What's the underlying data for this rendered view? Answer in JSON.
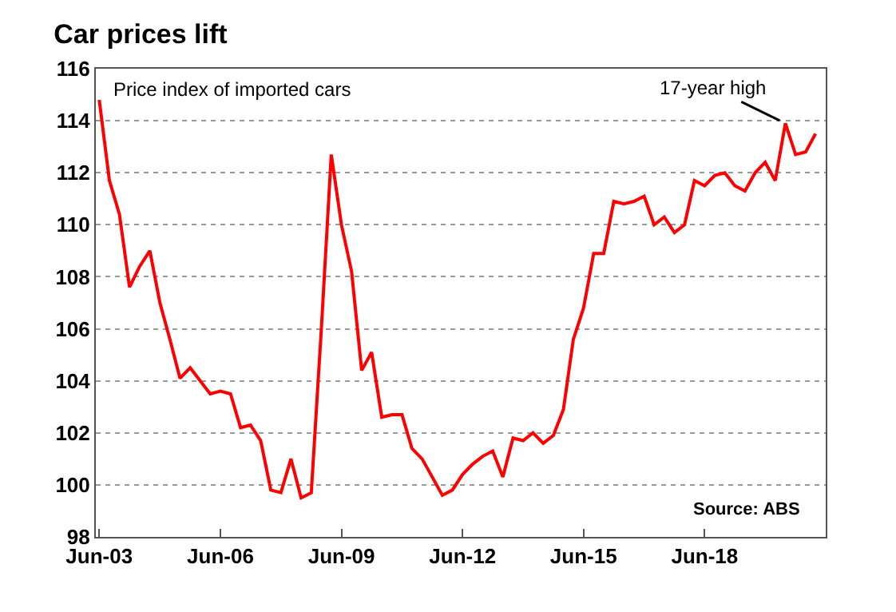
{
  "chart_data": {
    "type": "line",
    "title": "Car prices lift",
    "annotations": [
      "Price index of imported cars",
      {
        "text": "17-year high",
        "x": "2020-06",
        "y": 113.9
      },
      "Source: ABS"
    ],
    "x": [
      "2003-06",
      "2003-09",
      "2003-12",
      "2004-03",
      "2004-06",
      "2004-09",
      "2004-12",
      "2005-03",
      "2005-06",
      "2005-09",
      "2005-12",
      "2006-03",
      "2006-06",
      "2006-09",
      "2006-12",
      "2007-03",
      "2007-06",
      "2007-09",
      "2007-12",
      "2008-03",
      "2008-06",
      "2008-09",
      "2008-12",
      "2009-03",
      "2009-06",
      "2009-09",
      "2009-12",
      "2010-03",
      "2010-06",
      "2010-09",
      "2010-12",
      "2011-03",
      "2011-06",
      "2011-09",
      "2011-12",
      "2012-03",
      "2012-06",
      "2012-09",
      "2012-12",
      "2013-03",
      "2013-06",
      "2013-09",
      "2013-12",
      "2014-03",
      "2014-06",
      "2014-09",
      "2014-12",
      "2015-03",
      "2015-06",
      "2015-09",
      "2015-12",
      "2016-03",
      "2016-06",
      "2016-09",
      "2016-12",
      "2017-03",
      "2017-06",
      "2017-09",
      "2017-12",
      "2018-03",
      "2018-06",
      "2018-09",
      "2018-12",
      "2019-03",
      "2019-06",
      "2019-09",
      "2019-12",
      "2020-03",
      "2020-06",
      "2020-09",
      "2020-12",
      "2021-03"
    ],
    "series": [
      {
        "color": "#ff0000",
        "values": [
          114.8,
          111.7,
          110.4,
          107.6,
          108.4,
          109.0,
          107.0,
          105.6,
          104.1,
          104.5,
          104.0,
          103.5,
          103.6,
          103.5,
          102.2,
          102.3,
          101.7,
          99.8,
          99.7,
          101.0,
          99.5,
          99.7,
          106.0,
          112.7,
          110.0,
          108.2,
          104.4,
          105.1,
          102.6,
          102.7,
          102.7,
          101.4,
          101.0,
          100.3,
          99.6,
          99.8,
          100.4,
          100.8,
          101.1,
          101.3,
          100.3,
          101.8,
          101.7,
          102.0,
          101.6,
          101.9,
          102.9,
          105.6,
          106.8,
          108.9,
          108.9,
          110.9,
          110.8,
          110.9,
          111.1,
          110.0,
          110.3,
          109.7,
          110.0,
          111.7,
          111.5,
          111.9,
          112.0,
          111.5,
          111.3,
          112.0,
          112.4,
          111.7,
          113.9,
          112.7,
          112.8,
          113.5
        ]
      }
    ],
    "xlim": [
      "2003-05",
      "2021-06"
    ],
    "xticks": [
      {
        "value": "2003-06",
        "label": "Jun-03"
      },
      {
        "value": "2006-06",
        "label": "Jun-06"
      },
      {
        "value": "2009-06",
        "label": "Jun-09"
      },
      {
        "value": "2012-06",
        "label": "Jun-12"
      },
      {
        "value": "2015-06",
        "label": "Jun-15"
      },
      {
        "value": "2018-06",
        "label": "Jun-18"
      }
    ],
    "ylim": [
      98,
      116
    ],
    "yticks": [
      98,
      100,
      102,
      104,
      106,
      108,
      110,
      112,
      114,
      116
    ],
    "grid": "y",
    "marker": "none",
    "line_style": "solid"
  }
}
